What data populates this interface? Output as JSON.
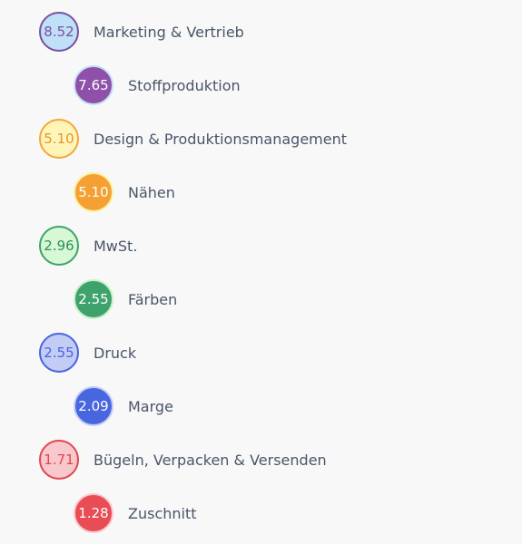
{
  "chart_data": {
    "type": "table",
    "items": [
      {
        "value": "8.52",
        "label": "Marketing & Vertrieb",
        "fill": "#bfe0f6",
        "border": "#7b4fa3",
        "text": "#7b4fa3"
      },
      {
        "value": "7.65",
        "label": "Stoffproduktion",
        "fill": "#8e50a8",
        "border": "#bfe0f6",
        "text": "#ffffff"
      },
      {
        "value": "5.10",
        "label": "Design & Produktionsmanagement",
        "fill": "#fff5b8",
        "border": "#f5a63a",
        "text": "#e09730"
      },
      {
        "value": "5.10",
        "label": "Nähen",
        "fill": "#f5a033",
        "border": "#fff0a0",
        "text": "#ffffff"
      },
      {
        "value": "2.96",
        "label": "MwSt.",
        "fill": "#d6f8d4",
        "border": "#3ea36a",
        "text": "#2f8f5a"
      },
      {
        "value": "2.55",
        "label": "Färben",
        "fill": "#3fa26d",
        "border": "#c8f2c6",
        "text": "#ffffff"
      },
      {
        "value": "2.55",
        "label": "Druck",
        "fill": "#c3ccf5",
        "border": "#4a63e0",
        "text": "#4a63e0"
      },
      {
        "value": "2.09",
        "label": "Marge",
        "fill": "#4866e0",
        "border": "#c3ccf5",
        "text": "#ffffff"
      },
      {
        "value": "1.71",
        "label": "Bügeln, Verpacken & Versenden",
        "fill": "#f8c8cc",
        "border": "#e0474f",
        "text": "#e0474f"
      },
      {
        "value": "1.28",
        "label": "Zuschnitt",
        "fill": "#e84c55",
        "border": "#f8c8cc",
        "text": "#ffffff"
      }
    ]
  }
}
